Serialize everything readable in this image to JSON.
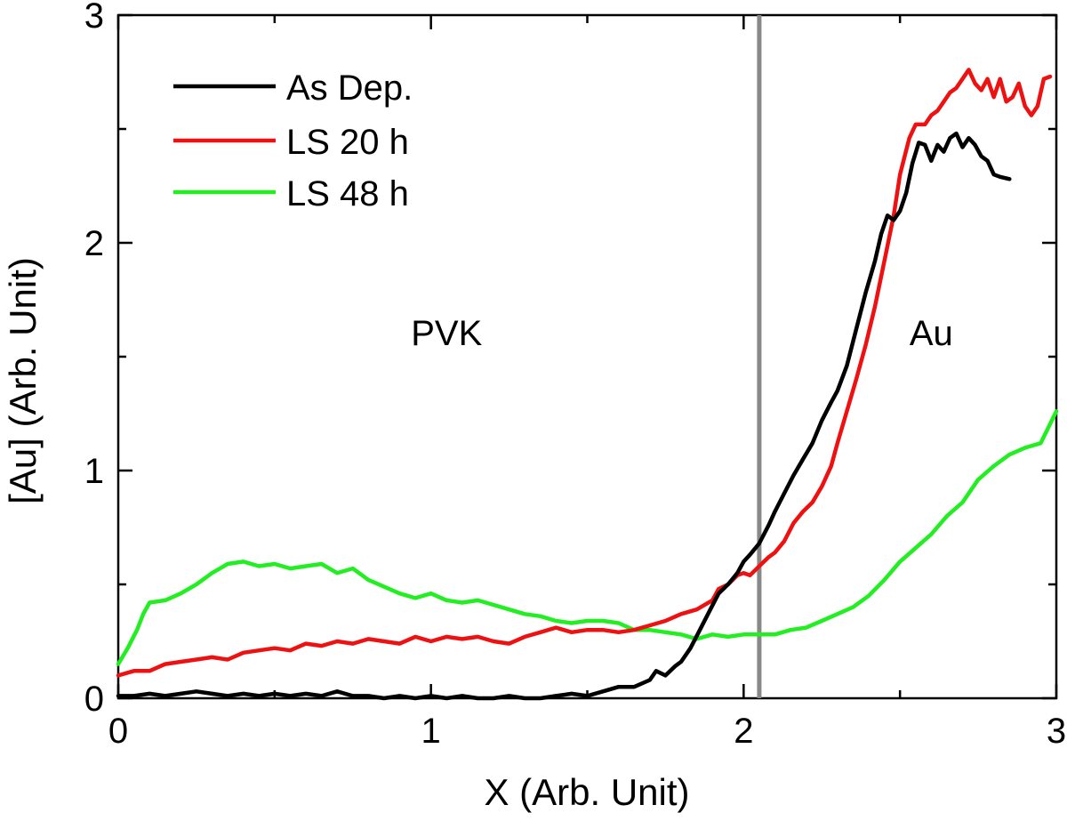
{
  "chart_data": {
    "type": "line",
    "title": "",
    "xlabel": "X (Arb. Unit)",
    "ylabel": "[Au] (Arb. Unit)",
    "xlim": [
      0,
      3
    ],
    "ylim": [
      0,
      3
    ],
    "xticks": [
      0,
      1,
      2,
      3
    ],
    "yticks": [
      0,
      1,
      2,
      3
    ],
    "xtick_labels": [
      "0",
      "1",
      "2",
      "3"
    ],
    "ytick_labels": [
      "0",
      "1",
      "2",
      "3"
    ],
    "grid": false,
    "legend_position": "top-left",
    "reference_line": {
      "x": 2.05,
      "color": "#888888"
    },
    "annotations": [
      {
        "text": "PVK",
        "x": 1.05,
        "y": 1.55
      },
      {
        "text": "Au",
        "x": 2.6,
        "y": 1.55
      }
    ],
    "series": [
      {
        "name": "As Dep.",
        "color": "#000000",
        "points": [
          [
            0,
            0.01
          ],
          [
            0.05,
            0.01
          ],
          [
            0.1,
            0.02
          ],
          [
            0.15,
            0.01
          ],
          [
            0.2,
            0.02
          ],
          [
            0.25,
            0.03
          ],
          [
            0.3,
            0.02
          ],
          [
            0.35,
            0.01
          ],
          [
            0.4,
            0.02
          ],
          [
            0.45,
            0.01
          ],
          [
            0.5,
            0.02
          ],
          [
            0.55,
            0.01
          ],
          [
            0.6,
            0.02
          ],
          [
            0.65,
            0.01
          ],
          [
            0.7,
            0.03
          ],
          [
            0.75,
            0.01
          ],
          [
            0.8,
            0.01
          ],
          [
            0.85,
            0.0
          ],
          [
            0.9,
            0.01
          ],
          [
            0.95,
            0.0
          ],
          [
            1.0,
            0.01
          ],
          [
            1.05,
            0.0
          ],
          [
            1.1,
            0.01
          ],
          [
            1.15,
            0.0
          ],
          [
            1.2,
            0.0
          ],
          [
            1.25,
            0.01
          ],
          [
            1.3,
            0.0
          ],
          [
            1.35,
            0.0
          ],
          [
            1.4,
            0.01
          ],
          [
            1.45,
            0.02
          ],
          [
            1.5,
            0.01
          ],
          [
            1.55,
            0.03
          ],
          [
            1.6,
            0.05
          ],
          [
            1.65,
            0.05
          ],
          [
            1.7,
            0.08
          ],
          [
            1.72,
            0.12
          ],
          [
            1.75,
            0.1
          ],
          [
            1.78,
            0.14
          ],
          [
            1.8,
            0.16
          ],
          [
            1.83,
            0.22
          ],
          [
            1.86,
            0.3
          ],
          [
            1.89,
            0.38
          ],
          [
            1.92,
            0.46
          ],
          [
            1.95,
            0.5
          ],
          [
            1.98,
            0.55
          ],
          [
            2.0,
            0.6
          ],
          [
            2.02,
            0.63
          ],
          [
            2.05,
            0.68
          ],
          [
            2.08,
            0.76
          ],
          [
            2.1,
            0.82
          ],
          [
            2.13,
            0.9
          ],
          [
            2.16,
            0.98
          ],
          [
            2.19,
            1.05
          ],
          [
            2.22,
            1.12
          ],
          [
            2.25,
            1.22
          ],
          [
            2.28,
            1.3
          ],
          [
            2.3,
            1.35
          ],
          [
            2.33,
            1.46
          ],
          [
            2.36,
            1.62
          ],
          [
            2.39,
            1.78
          ],
          [
            2.42,
            1.92
          ],
          [
            2.44,
            2.04
          ],
          [
            2.46,
            2.12
          ],
          [
            2.48,
            2.1
          ],
          [
            2.5,
            2.14
          ],
          [
            2.52,
            2.22
          ],
          [
            2.54,
            2.35
          ],
          [
            2.56,
            2.44
          ],
          [
            2.58,
            2.43
          ],
          [
            2.6,
            2.36
          ],
          [
            2.62,
            2.43
          ],
          [
            2.64,
            2.4
          ],
          [
            2.66,
            2.46
          ],
          [
            2.68,
            2.48
          ],
          [
            2.7,
            2.42
          ],
          [
            2.72,
            2.46
          ],
          [
            2.74,
            2.43
          ],
          [
            2.76,
            2.38
          ],
          [
            2.78,
            2.36
          ],
          [
            2.8,
            2.3
          ],
          [
            2.82,
            2.29
          ],
          [
            2.85,
            2.28
          ]
        ]
      },
      {
        "name": "LS 20 h",
        "color": "#ee1111",
        "points": [
          [
            0,
            0.1
          ],
          [
            0.05,
            0.12
          ],
          [
            0.1,
            0.12
          ],
          [
            0.15,
            0.15
          ],
          [
            0.2,
            0.16
          ],
          [
            0.25,
            0.17
          ],
          [
            0.3,
            0.18
          ],
          [
            0.35,
            0.17
          ],
          [
            0.4,
            0.2
          ],
          [
            0.45,
            0.21
          ],
          [
            0.5,
            0.22
          ],
          [
            0.55,
            0.21
          ],
          [
            0.6,
            0.24
          ],
          [
            0.65,
            0.23
          ],
          [
            0.7,
            0.25
          ],
          [
            0.75,
            0.24
          ],
          [
            0.8,
            0.26
          ],
          [
            0.85,
            0.25
          ],
          [
            0.9,
            0.24
          ],
          [
            0.95,
            0.27
          ],
          [
            1.0,
            0.25
          ],
          [
            1.05,
            0.27
          ],
          [
            1.1,
            0.26
          ],
          [
            1.15,
            0.27
          ],
          [
            1.2,
            0.25
          ],
          [
            1.25,
            0.24
          ],
          [
            1.3,
            0.27
          ],
          [
            1.35,
            0.29
          ],
          [
            1.4,
            0.31
          ],
          [
            1.45,
            0.29
          ],
          [
            1.5,
            0.3
          ],
          [
            1.55,
            0.3
          ],
          [
            1.6,
            0.29
          ],
          [
            1.65,
            0.3
          ],
          [
            1.7,
            0.32
          ],
          [
            1.75,
            0.34
          ],
          [
            1.8,
            0.37
          ],
          [
            1.85,
            0.39
          ],
          [
            1.9,
            0.43
          ],
          [
            1.92,
            0.48
          ],
          [
            1.95,
            0.5
          ],
          [
            1.98,
            0.54
          ],
          [
            2.0,
            0.55
          ],
          [
            2.02,
            0.54
          ],
          [
            2.05,
            0.58
          ],
          [
            2.08,
            0.62
          ],
          [
            2.1,
            0.64
          ],
          [
            2.13,
            0.69
          ],
          [
            2.16,
            0.77
          ],
          [
            2.19,
            0.82
          ],
          [
            2.22,
            0.86
          ],
          [
            2.25,
            0.93
          ],
          [
            2.28,
            1.02
          ],
          [
            2.3,
            1.12
          ],
          [
            2.33,
            1.26
          ],
          [
            2.36,
            1.4
          ],
          [
            2.39,
            1.55
          ],
          [
            2.42,
            1.72
          ],
          [
            2.45,
            1.92
          ],
          [
            2.48,
            2.12
          ],
          [
            2.5,
            2.3
          ],
          [
            2.53,
            2.46
          ],
          [
            2.55,
            2.52
          ],
          [
            2.58,
            2.52
          ],
          [
            2.6,
            2.56
          ],
          [
            2.62,
            2.58
          ],
          [
            2.64,
            2.62
          ],
          [
            2.66,
            2.66
          ],
          [
            2.68,
            2.68
          ],
          [
            2.7,
            2.72
          ],
          [
            2.72,
            2.76
          ],
          [
            2.74,
            2.7
          ],
          [
            2.76,
            2.67
          ],
          [
            2.78,
            2.72
          ],
          [
            2.8,
            2.64
          ],
          [
            2.82,
            2.72
          ],
          [
            2.84,
            2.62
          ],
          [
            2.86,
            2.64
          ],
          [
            2.88,
            2.7
          ],
          [
            2.9,
            2.6
          ],
          [
            2.92,
            2.56
          ],
          [
            2.94,
            2.6
          ],
          [
            2.96,
            2.72
          ],
          [
            2.98,
            2.73
          ]
        ]
      },
      {
        "name": "LS 48 h",
        "color": "#22ee22",
        "points": [
          [
            0,
            0.15
          ],
          [
            0.03,
            0.22
          ],
          [
            0.06,
            0.3
          ],
          [
            0.08,
            0.37
          ],
          [
            0.1,
            0.42
          ],
          [
            0.15,
            0.43
          ],
          [
            0.2,
            0.46
          ],
          [
            0.25,
            0.5
          ],
          [
            0.3,
            0.55
          ],
          [
            0.35,
            0.59
          ],
          [
            0.4,
            0.6
          ],
          [
            0.45,
            0.58
          ],
          [
            0.5,
            0.59
          ],
          [
            0.55,
            0.57
          ],
          [
            0.6,
            0.58
          ],
          [
            0.65,
            0.59
          ],
          [
            0.7,
            0.55
          ],
          [
            0.75,
            0.57
          ],
          [
            0.8,
            0.52
          ],
          [
            0.85,
            0.49
          ],
          [
            0.9,
            0.46
          ],
          [
            0.95,
            0.44
          ],
          [
            1.0,
            0.46
          ],
          [
            1.05,
            0.43
          ],
          [
            1.1,
            0.42
          ],
          [
            1.15,
            0.43
          ],
          [
            1.2,
            0.41
          ],
          [
            1.25,
            0.39
          ],
          [
            1.3,
            0.37
          ],
          [
            1.35,
            0.36
          ],
          [
            1.4,
            0.34
          ],
          [
            1.45,
            0.33
          ],
          [
            1.5,
            0.34
          ],
          [
            1.55,
            0.34
          ],
          [
            1.6,
            0.33
          ],
          [
            1.65,
            0.3
          ],
          [
            1.7,
            0.3
          ],
          [
            1.75,
            0.29
          ],
          [
            1.8,
            0.28
          ],
          [
            1.85,
            0.26
          ],
          [
            1.9,
            0.28
          ],
          [
            1.95,
            0.27
          ],
          [
            2.0,
            0.28
          ],
          [
            2.05,
            0.28
          ],
          [
            2.1,
            0.28
          ],
          [
            2.15,
            0.3
          ],
          [
            2.2,
            0.31
          ],
          [
            2.25,
            0.34
          ],
          [
            2.3,
            0.37
          ],
          [
            2.35,
            0.4
          ],
          [
            2.4,
            0.45
          ],
          [
            2.45,
            0.52
          ],
          [
            2.5,
            0.6
          ],
          [
            2.55,
            0.66
          ],
          [
            2.6,
            0.72
          ],
          [
            2.65,
            0.8
          ],
          [
            2.7,
            0.86
          ],
          [
            2.75,
            0.96
          ],
          [
            2.8,
            1.02
          ],
          [
            2.85,
            1.07
          ],
          [
            2.9,
            1.1
          ],
          [
            2.95,
            1.12
          ],
          [
            3.0,
            1.26
          ]
        ]
      }
    ]
  }
}
